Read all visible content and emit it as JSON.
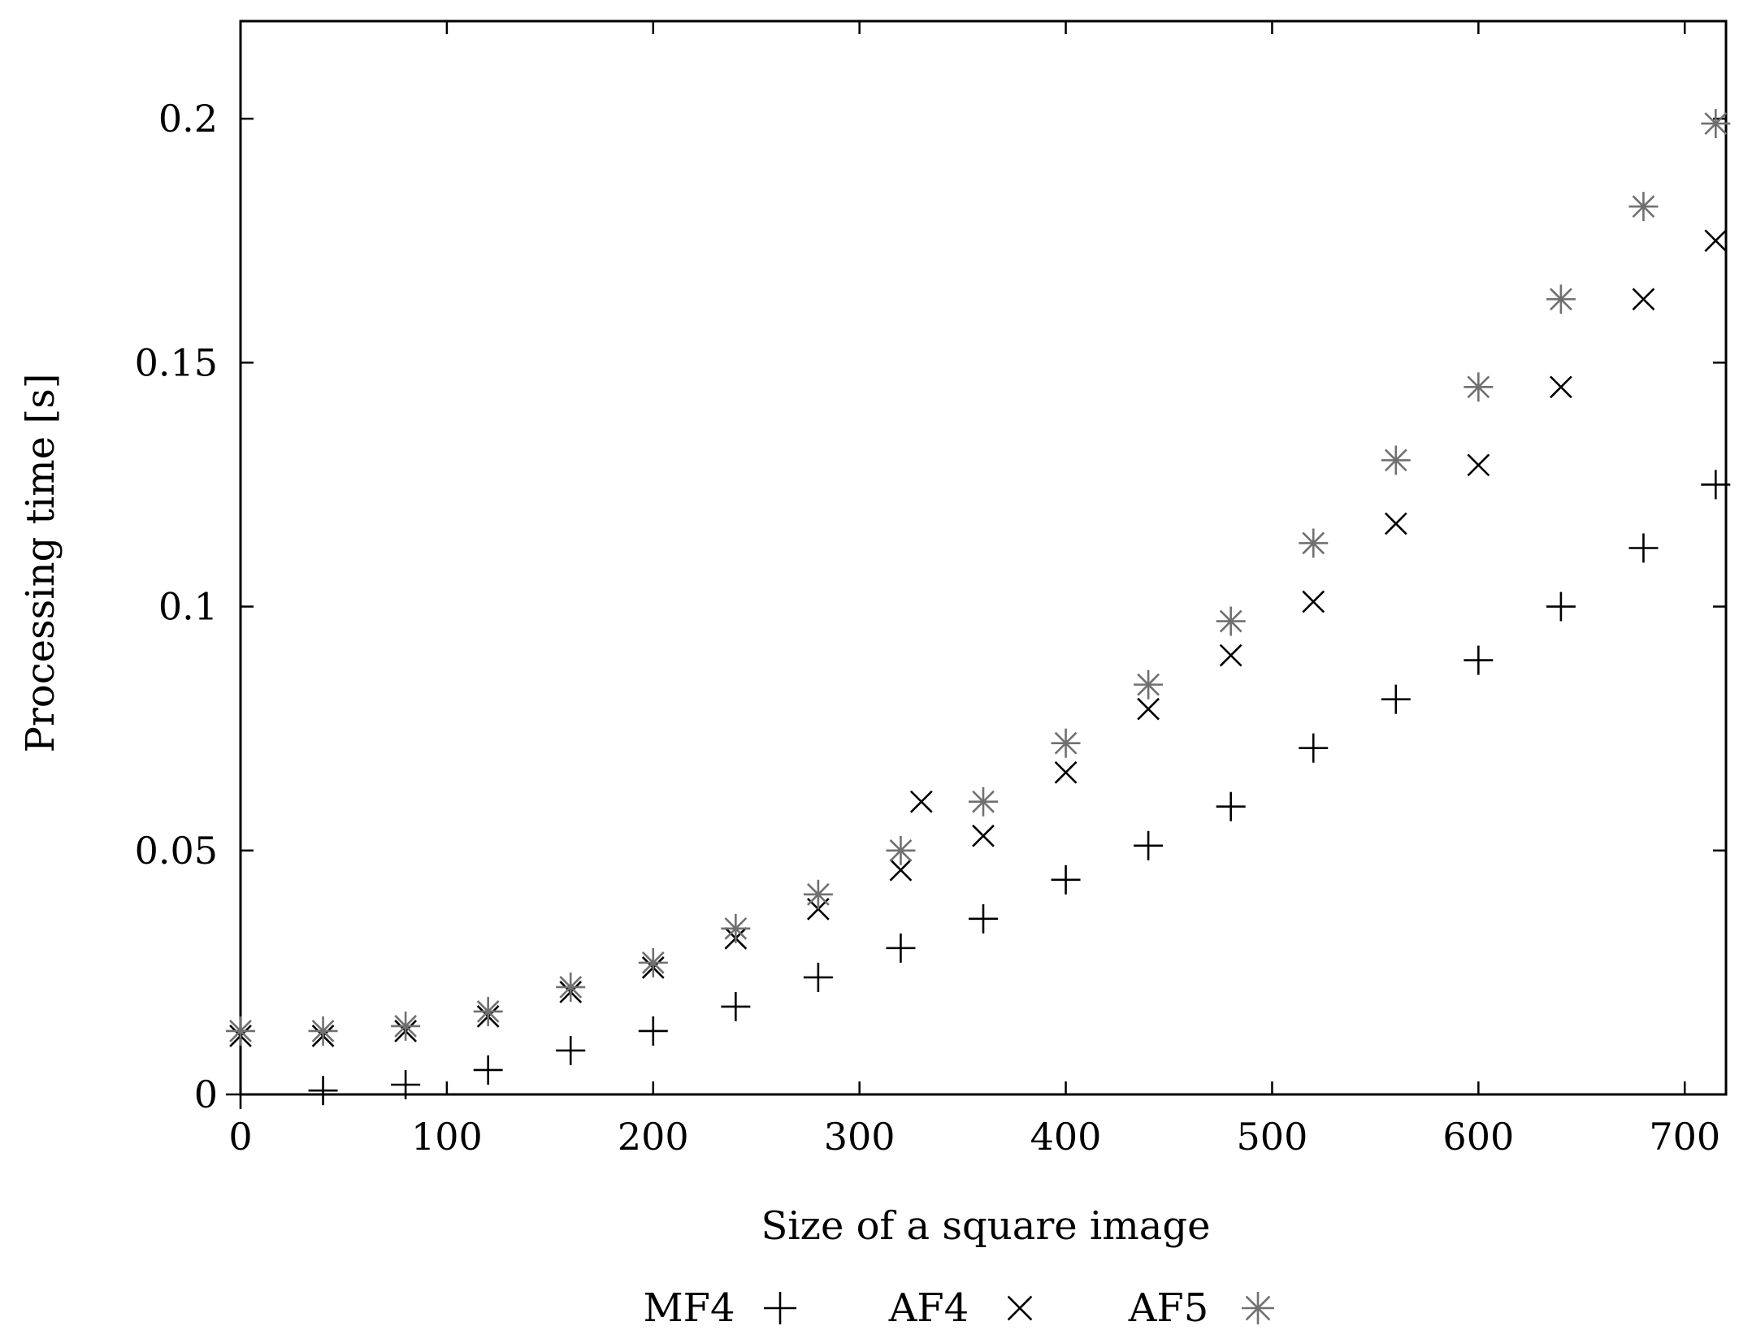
{
  "chart_data": {
    "type": "scatter",
    "title": "",
    "xlabel": "Size of a square image",
    "ylabel": "Processing time [s]",
    "xlim": [
      0,
      720
    ],
    "ylim": [
      0,
      0.22
    ],
    "xticks": [
      0,
      100,
      200,
      300,
      400,
      500,
      600,
      700
    ],
    "xtick_labels": [
      "0",
      "100",
      "200",
      "300",
      "400",
      "500",
      "600",
      "700"
    ],
    "yticks": [
      0,
      0.05,
      0.1,
      0.15,
      0.2
    ],
    "ytick_labels": [
      "0",
      "0.05",
      "0.1",
      "0.15",
      "0.2"
    ],
    "grid": false,
    "legend_position": "bottom",
    "series": [
      {
        "name": "MF4",
        "marker": "plus",
        "color": "#000000",
        "x": [
          0,
          40,
          80,
          120,
          160,
          200,
          240,
          280,
          320,
          360,
          400,
          440,
          480,
          520,
          560,
          600,
          640,
          680,
          715
        ],
        "y": [
          0.0,
          0.0008,
          0.002,
          0.005,
          0.009,
          0.013,
          0.018,
          0.024,
          0.03,
          0.036,
          0.044,
          0.051,
          0.059,
          0.071,
          0.081,
          0.089,
          0.1,
          0.112,
          0.125
        ]
      },
      {
        "name": "AF4",
        "marker": "cross",
        "color": "#000000",
        "x": [
          0,
          40,
          80,
          120,
          160,
          200,
          240,
          280,
          320,
          330,
          360,
          400,
          440,
          480,
          520,
          560,
          600,
          640,
          680,
          715
        ],
        "y": [
          0.012,
          0.012,
          0.013,
          0.016,
          0.021,
          0.026,
          0.032,
          0.038,
          0.046,
          0.06,
          0.053,
          0.066,
          0.079,
          0.09,
          0.101,
          0.117,
          0.129,
          0.145,
          0.163,
          0.175
        ]
      },
      {
        "name": "AF5",
        "marker": "star",
        "color": "#707070",
        "x": [
          0,
          40,
          80,
          120,
          160,
          200,
          240,
          280,
          320,
          360,
          400,
          440,
          480,
          520,
          560,
          600,
          640,
          680,
          715
        ],
        "y": [
          0.013,
          0.013,
          0.014,
          0.017,
          0.022,
          0.027,
          0.034,
          0.041,
          0.05,
          0.06,
          0.072,
          0.084,
          0.097,
          0.113,
          0.13,
          0.145,
          0.163,
          0.182,
          0.199
        ]
      }
    ]
  }
}
